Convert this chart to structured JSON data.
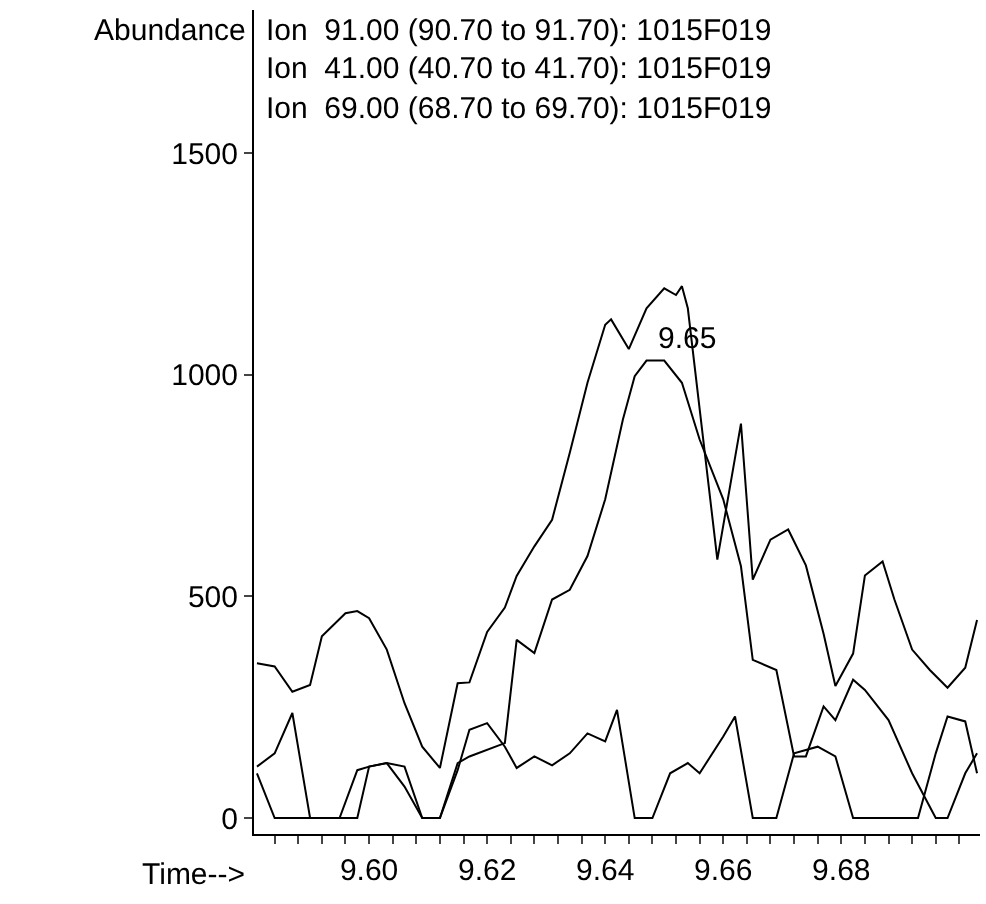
{
  "chart_data": {
    "type": "line",
    "xlabel": "Time-->",
    "ylabel": "Abundance",
    "annotations": [
      "Ion  91.00 (90.70 to 91.70): 1015F019",
      "Ion  41.00 (40.70 to 41.70): 1015F019",
      "Ion  69.00 (68.70 to 69.70): 1015F019",
      {
        "text": "9.65",
        "x": 9.647,
        "y": 1032
      }
    ],
    "xlim": [
      9.5805,
      9.7035
    ],
    "ylim": [
      -36,
      1823
    ],
    "xticks": [
      {
        "value": 9.584,
        "label": null
      },
      {
        "value": 9.588,
        "label": null
      },
      {
        "value": 9.592,
        "label": null
      },
      {
        "value": 9.596,
        "label": null
      },
      {
        "value": 9.6,
        "label": "9.60"
      },
      {
        "value": 9.604,
        "label": null
      },
      {
        "value": 9.608,
        "label": null
      },
      {
        "value": 9.612,
        "label": null
      },
      {
        "value": 9.616,
        "label": null
      },
      {
        "value": 9.62,
        "label": "9.62"
      },
      {
        "value": 9.624,
        "label": null
      },
      {
        "value": 9.628,
        "label": null
      },
      {
        "value": 9.632,
        "label": null
      },
      {
        "value": 9.636,
        "label": null
      },
      {
        "value": 9.64,
        "label": "9.64"
      },
      {
        "value": 9.644,
        "label": null
      },
      {
        "value": 9.648,
        "label": null
      },
      {
        "value": 9.652,
        "label": null
      },
      {
        "value": 9.656,
        "label": null
      },
      {
        "value": 9.66,
        "label": "9.66"
      },
      {
        "value": 9.664,
        "label": null
      },
      {
        "value": 9.668,
        "label": null
      },
      {
        "value": 9.672,
        "label": null
      },
      {
        "value": 9.676,
        "label": null
      },
      {
        "value": 9.68,
        "label": "9.68"
      },
      {
        "value": 9.684,
        "label": null
      },
      {
        "value": 9.688,
        "label": null
      },
      {
        "value": 9.692,
        "label": null
      },
      {
        "value": 9.696,
        "label": null
      },
      {
        "value": 9.7,
        "label": null
      }
    ],
    "yticks": [
      0,
      500,
      1000,
      1500
    ],
    "grid": false,
    "marker": "none",
    "line_style": "solid",
    "series": [
      {
        "color": "#000000",
        "x": [
          9.581,
          9.584,
          9.587,
          9.59,
          9.592,
          9.596,
          9.598,
          9.6,
          9.603,
          9.606,
          9.609,
          9.612,
          9.615,
          9.617,
          9.62,
          9.623,
          9.625,
          9.628,
          9.631,
          9.634,
          9.637,
          9.64,
          9.641,
          9.644,
          9.647,
          9.65,
          9.652,
          9.653,
          9.654,
          9.659,
          9.663,
          9.665,
          9.668,
          9.671,
          9.674,
          9.677,
          9.679,
          9.682,
          9.684,
          9.687,
          9.689,
          9.692,
          9.695,
          9.698,
          9.701,
          9.703
        ],
        "values": [
          349,
          342,
          285,
          300,
          410,
          462,
          467,
          451,
          380,
          259,
          161,
          113,
          304,
          306,
          420,
          475,
          546,
          613,
          673,
          824,
          982,
          1113,
          1125,
          1058,
          1150,
          1195,
          1180,
          1200,
          1150,
          583,
          890,
          538,
          628,
          651,
          570,
          416,
          298,
          371,
          547,
          579,
          493,
          380,
          334,
          294,
          339,
          447
        ]
      },
      {
        "color": "#000000",
        "x": [
          9.581,
          9.584,
          9.595,
          9.598,
          9.6,
          9.603,
          9.606,
          9.609,
          9.612,
          9.615,
          9.617,
          9.623,
          9.625,
          9.628,
          9.631,
          9.634,
          9.637,
          9.64,
          9.643,
          9.645,
          9.647,
          9.65,
          9.653,
          9.656,
          9.66,
          9.663,
          9.665,
          9.669,
          9.672,
          9.674,
          9.677,
          9.679,
          9.682,
          9.684,
          9.688,
          9.692,
          9.696,
          9.698,
          9.701,
          9.703
        ],
        "values": [
          101,
          0,
          0,
          0,
          116,
          124,
          71,
          0,
          0,
          124,
          139,
          169,
          402,
          372,
          493,
          515,
          591,
          719,
          899,
          997,
          1032,
          1032,
          982,
          854,
          719,
          568,
          357,
          334,
          139,
          139,
          252,
          221,
          312,
          289,
          221,
          101,
          0,
          0,
          101,
          146
        ]
      },
      {
        "color": "#000000",
        "x": [
          9.581,
          9.584,
          9.587,
          9.59,
          9.595,
          9.598,
          9.6,
          9.603,
          9.606,
          9.609,
          9.612,
          9.615,
          9.617,
          9.62,
          9.623,
          9.625,
          9.628,
          9.631,
          9.634,
          9.637,
          9.64,
          9.642,
          9.645,
          9.648,
          9.651,
          9.654,
          9.656,
          9.66,
          9.662,
          9.665,
          9.669,
          9.672,
          9.676,
          9.679,
          9.682,
          9.693,
          9.696,
          9.698,
          9.701,
          9.703
        ],
        "values": [
          116,
          146,
          237,
          0,
          0,
          108,
          116,
          124,
          116,
          0,
          0,
          108,
          199,
          214,
          161,
          113,
          139,
          119,
          146,
          191,
          173,
          244,
          0,
          0,
          101,
          124,
          101,
          184,
          229,
          0,
          0,
          146,
          161,
          139,
          0,
          0,
          146,
          229,
          218,
          101
        ]
      }
    ]
  }
}
